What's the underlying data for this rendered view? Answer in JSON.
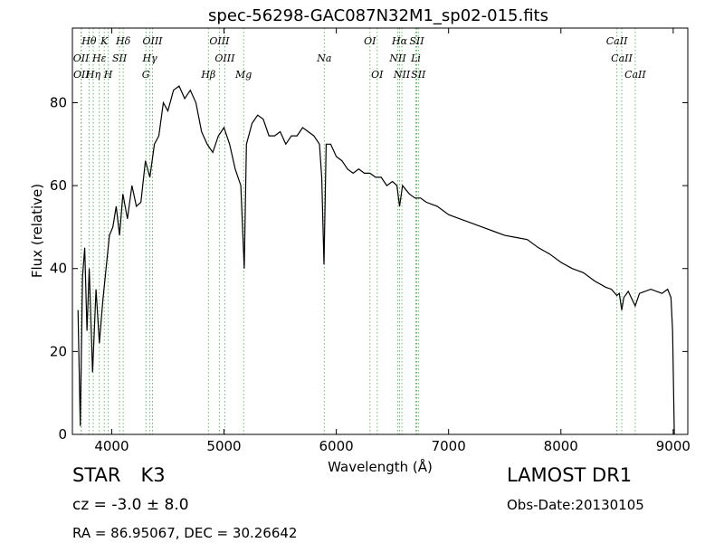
{
  "chart_data": {
    "type": "line",
    "title": "spec-56298-GAC087N32M1_sp02-015.fits",
    "xlabel": "Wavelength (Å)",
    "ylabel": "Flux (relative)",
    "xlim": [
      3650,
      9130
    ],
    "ylim": [
      0,
      98
    ],
    "xticks": [
      4000,
      5000,
      6000,
      7000,
      8000,
      9000
    ],
    "yticks": [
      0,
      20,
      40,
      60,
      80
    ],
    "line_color": "#000000",
    "marker_color": "#5fbf5f",
    "series": [
      {
        "x": [
          3700,
          3720,
          3740,
          3760,
          3780,
          3800,
          3830,
          3860,
          3890,
          3920,
          3950,
          3980,
          4010,
          4040,
          4070,
          4100,
          4140,
          4180,
          4220,
          4260,
          4300,
          4340,
          4380,
          4420,
          4460,
          4500,
          4550,
          4600,
          4650,
          4700,
          4750,
          4800,
          4850,
          4900,
          4950,
          5000,
          5050,
          5100,
          5150,
          5180,
          5200,
          5250,
          5300,
          5350,
          5400,
          5450,
          5500,
          5550,
          5600,
          5650,
          5700,
          5750,
          5800,
          5850,
          5870,
          5890,
          5910,
          5950,
          6000,
          6050,
          6100,
          6150,
          6200,
          6250,
          6300,
          6350,
          6400,
          6450,
          6500,
          6540,
          6563,
          6590,
          6650,
          6700,
          6750,
          6800,
          6900,
          7000,
          7100,
          7200,
          7300,
          7400,
          7500,
          7600,
          7700,
          7800,
          7900,
          8000,
          8100,
          8200,
          8300,
          8400,
          8450,
          8498,
          8520,
          8542,
          8560,
          8600,
          8662,
          8700,
          8800,
          8900,
          8950,
          8980,
          8995,
          9010
        ],
        "y": [
          30,
          2,
          38,
          45,
          25,
          40,
          15,
          35,
          22,
          32,
          40,
          48,
          50,
          55,
          48,
          58,
          52,
          60,
          55,
          56,
          66,
          62,
          70,
          72,
          80,
          78,
          83,
          84,
          81,
          83,
          80,
          73,
          70,
          68,
          72,
          74,
          70,
          64,
          60,
          40,
          70,
          75,
          77,
          76,
          72,
          72,
          73,
          70,
          72,
          72,
          74,
          73,
          72,
          70,
          62,
          41,
          70,
          70,
          67,
          66,
          64,
          63,
          64,
          63,
          63,
          62,
          62,
          60,
          61,
          60,
          55,
          60,
          58,
          57,
          57,
          56,
          55,
          53,
          52,
          51,
          50,
          49,
          48,
          47.5,
          47,
          45,
          43.5,
          41.5,
          40,
          39,
          37,
          35.5,
          35,
          33.5,
          34,
          30,
          33,
          34.5,
          31,
          34,
          35,
          34,
          35,
          33,
          25,
          0
        ]
      }
    ],
    "lines": [
      {
        "name": "Hθ",
        "wave": 3798,
        "row": 0
      },
      {
        "name": "K",
        "wave": 3934,
        "row": 0
      },
      {
        "name": "Hδ",
        "wave": 4102,
        "row": 0
      },
      {
        "name": "OIII",
        "wave": 4363,
        "row": 0
      },
      {
        "name": "OIII",
        "wave": 4959,
        "row": 0
      },
      {
        "name": "OI",
        "wave": 6300,
        "row": 0
      },
      {
        "name": "Hα",
        "wave": 6563,
        "row": 0
      },
      {
        "name": "SII",
        "wave": 6716,
        "row": 0
      },
      {
        "name": "CaII",
        "wave": 8498,
        "row": 0
      },
      {
        "name": "OII",
        "wave": 3727,
        "row": 1
      },
      {
        "name": "Hε",
        "wave": 3889,
        "row": 1
      },
      {
        "name": "SII",
        "wave": 4070,
        "row": 1
      },
      {
        "name": "Hγ",
        "wave": 4340,
        "row": 1
      },
      {
        "name": "OIII",
        "wave": 5007,
        "row": 1
      },
      {
        "name": "Na",
        "wave": 5893,
        "row": 1
      },
      {
        "name": "NII",
        "wave": 6548,
        "row": 1
      },
      {
        "name": "Li",
        "wave": 6708,
        "row": 1
      },
      {
        "name": "CaII",
        "wave": 8542,
        "row": 1
      },
      {
        "name": "OII",
        "wave": 3730,
        "row": 2
      },
      {
        "name": "Hη",
        "wave": 3835,
        "row": 2
      },
      {
        "name": "H",
        "wave": 3969,
        "row": 2
      },
      {
        "name": "G",
        "wave": 4304,
        "row": 2
      },
      {
        "name": "Hβ",
        "wave": 4861,
        "row": 2
      },
      {
        "name": "Mg",
        "wave": 5175,
        "row": 2
      },
      {
        "name": "OI",
        "wave": 6364,
        "row": 2
      },
      {
        "name": "NII",
        "wave": 6584,
        "row": 2
      },
      {
        "name": "SII",
        "wave": 6731,
        "row": 2
      },
      {
        "name": "CaII",
        "wave": 8662,
        "row": 2
      }
    ]
  },
  "info": {
    "class": "STAR",
    "subclass": "K3",
    "cz": "cz = -3.0  ± 8.0",
    "radec": "RA = 86.95067, DEC = 30.26642",
    "survey": "LAMOST DR1",
    "obs_date": "Obs-Date:20130105"
  }
}
